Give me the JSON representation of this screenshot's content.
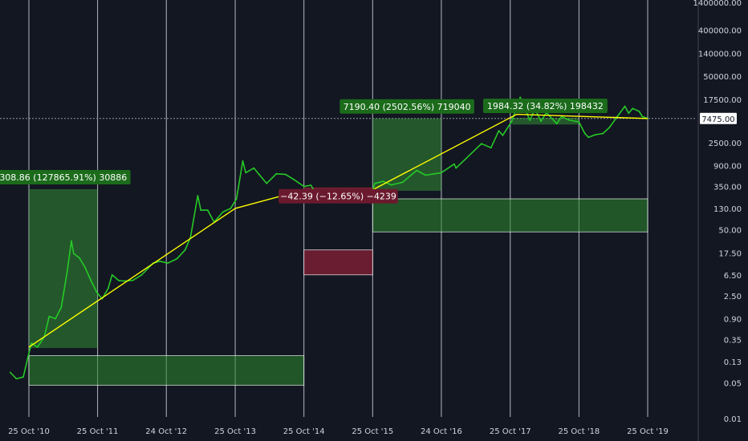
{
  "chart_data": {
    "type": "line",
    "scale": "log",
    "x": [
      "25 Oct '10",
      "25 Oct '11",
      "24 Oct '12",
      "25 Oct '13",
      "25 Oct '14",
      "25 Oct '15",
      "24 Oct '16",
      "25 Oct '17",
      "25 Oct '18",
      "25 Oct '19"
    ],
    "y_ticks": [
      "1400000.00",
      "400000.00",
      "140000.00",
      "50000.00",
      "17500.00",
      "7475.00",
      "2500.00",
      "900.00",
      "350.00",
      "130.00",
      "50.00",
      "17.50",
      "6.50",
      "2.50",
      "0.90",
      "0.35",
      "0.13",
      "0.05",
      "0.01"
    ],
    "ylim": [
      0.01,
      1400000
    ],
    "grid": "vertical",
    "last_price": "7475.00",
    "series": [
      {
        "color": "#26c926",
        "points": [
          [
            "2010-07-18",
            0.08
          ],
          [
            "2010-08-20",
            0.06
          ],
          [
            "2010-09-25",
            0.065
          ],
          [
            "2010-10-25",
            0.19
          ],
          [
            "2010-11-08",
            0.3
          ],
          [
            "2010-12-10",
            0.25
          ],
          [
            "2011-01-15",
            0.4
          ],
          [
            "2011-02-10",
            1.0
          ],
          [
            "2011-03-15",
            0.9
          ],
          [
            "2011-04-15",
            1.5
          ],
          [
            "2011-05-15",
            7
          ],
          [
            "2011-06-08",
            30
          ],
          [
            "2011-06-20",
            17
          ],
          [
            "2011-07-20",
            14
          ],
          [
            "2011-08-20",
            9
          ],
          [
            "2011-09-20",
            5
          ],
          [
            "2011-10-20",
            3
          ],
          [
            "2011-11-18",
            2.2
          ],
          [
            "2011-12-20",
            3.5
          ],
          [
            "2012-01-10",
            6.5
          ],
          [
            "2012-02-15",
            5
          ],
          [
            "2012-03-20",
            4.9
          ],
          [
            "2012-05-01",
            5.1
          ],
          [
            "2012-06-15",
            6.5
          ],
          [
            "2012-08-15",
            11
          ],
          [
            "2012-09-20",
            12
          ],
          [
            "2012-11-01",
            11
          ],
          [
            "2012-12-20",
            13.5
          ],
          [
            "2013-02-01",
            20
          ],
          [
            "2013-03-01",
            35
          ],
          [
            "2013-04-09",
            230
          ],
          [
            "2013-04-25",
            120
          ],
          [
            "2013-06-01",
            120
          ],
          [
            "2013-07-05",
            70
          ],
          [
            "2013-08-20",
            110
          ],
          [
            "2013-10-01",
            130
          ],
          [
            "2013-11-01",
            200
          ],
          [
            "2013-12-04",
            1100
          ],
          [
            "2013-12-20",
            650
          ],
          [
            "2014-02-01",
            800
          ],
          [
            "2014-03-01",
            600
          ],
          [
            "2014-04-10",
            400
          ],
          [
            "2014-06-01",
            620
          ],
          [
            "2014-07-20",
            600
          ],
          [
            "2014-09-01",
            480
          ],
          [
            "2014-10-25",
            350
          ],
          [
            "2014-12-01",
            370
          ],
          [
            "2015-01-15",
            200
          ],
          [
            "2015-03-01",
            260
          ],
          [
            "2015-05-01",
            235
          ],
          [
            "2015-07-01",
            260
          ],
          [
            "2015-08-25",
            210
          ],
          [
            "2015-10-25",
            285
          ],
          [
            "2015-11-05",
            400
          ],
          [
            "2015-12-20",
            440
          ],
          [
            "2016-02-01",
            375
          ],
          [
            "2016-04-01",
            420
          ],
          [
            "2016-06-15",
            720
          ],
          [
            "2016-08-01",
            580
          ],
          [
            "2016-10-24",
            650
          ],
          [
            "2016-12-31",
            960
          ],
          [
            "2017-01-10",
            800
          ],
          [
            "2017-03-01",
            1200
          ],
          [
            "2017-05-25",
            2400
          ],
          [
            "2017-07-15",
            2000
          ],
          [
            "2017-08-25",
            4300
          ],
          [
            "2017-09-15",
            3500
          ],
          [
            "2017-11-01",
            6500
          ],
          [
            "2017-12-17",
            19500
          ],
          [
            "2018-02-06",
            6900
          ],
          [
            "2018-03-05",
            11500
          ],
          [
            "2018-04-06",
            6600
          ],
          [
            "2018-05-05",
            9800
          ],
          [
            "2018-06-29",
            5900
          ],
          [
            "2018-07-25",
            8200
          ],
          [
            "2018-09-01",
            7000
          ],
          [
            "2018-10-25",
            6400
          ],
          [
            "2018-11-25",
            3800
          ],
          [
            "2018-12-15",
            3200
          ],
          [
            "2019-01-20",
            3600
          ],
          [
            "2019-03-01",
            3800
          ],
          [
            "2019-04-05",
            5000
          ],
          [
            "2019-05-15",
            8000
          ],
          [
            "2019-06-26",
            13000
          ],
          [
            "2019-07-16",
            9500
          ],
          [
            "2019-08-06",
            11800
          ],
          [
            "2019-09-10",
            10300
          ],
          [
            "2019-09-26",
            8200
          ],
          [
            "2019-10-25",
            7475
          ]
        ]
      },
      {
        "color": "#ffff00",
        "points": [
          [
            "2010-10-25",
            0.25
          ],
          [
            "2013-10-25",
            130
          ],
          [
            "2014-10-25",
            300
          ],
          [
            "2015-10-25",
            300
          ],
          [
            "2017-11-28",
            9000
          ],
          [
            "2019-10-25",
            7475
          ]
        ]
      }
    ],
    "annotations": [
      {
        "label": "308.86 (127865.91%) 30886",
        "kind": "gain",
        "from": "2010-10-25",
        "to": "2011-10-25",
        "low": 0.24,
        "high": 309
      },
      {
        "label": "−42.39 (−12.65%) −4239",
        "kind": "loss",
        "from": "2014-10-25",
        "to": "2015-10-25",
        "low": 292,
        "high": 335
      },
      {
        "label": "7190.40 (2502.56%) 719040",
        "kind": "gain",
        "from": "2015-10-25",
        "to": "2016-10-24",
        "low": 287,
        "high": 7478
      },
      {
        "label": "1984.32 (34.82%) 198432",
        "kind": "gain",
        "from": "2017-11-01",
        "to": "2018-10-25",
        "low": 5700,
        "high": 7684
      }
    ],
    "zones": [
      {
        "kind": "gain",
        "from": "2010-10-25",
        "to": "2014-10-25",
        "low": 0.045,
        "high": 0.17
      },
      {
        "kind": "loss",
        "from": "2014-10-25",
        "to": "2015-10-25",
        "low": 6.5,
        "high": 20
      },
      {
        "kind": "gain",
        "from": "2015-10-25",
        "to": "2019-10-25",
        "low": 45,
        "high": 200
      }
    ]
  },
  "colors": {
    "background": "#131722",
    "gain_fill": "#2e8b2e",
    "loss_fill": "#7a1f34",
    "gain_label": "#1b6b1b",
    "loss_label": "#6b1a2e",
    "grid": "#d1d4dc",
    "price_tag": "#ffffff"
  }
}
